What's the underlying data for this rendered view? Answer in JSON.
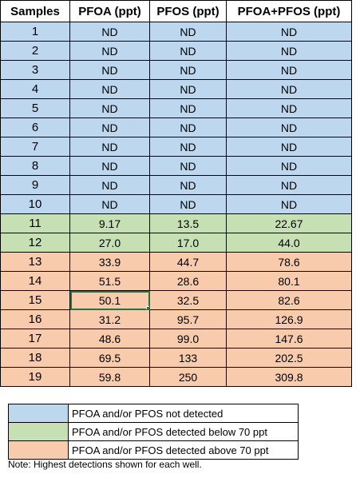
{
  "table": {
    "headers": [
      "Samples",
      "PFOA (ppt)",
      "PFOS (ppt)",
      "PFOA+PFOS (ppt)"
    ],
    "rows": [
      {
        "sample": "1",
        "pfoa": "ND",
        "pfos": "ND",
        "total": "ND",
        "category": "not_detected"
      },
      {
        "sample": "2",
        "pfoa": "ND",
        "pfos": "ND",
        "total": "ND",
        "category": "not_detected"
      },
      {
        "sample": "3",
        "pfoa": "ND",
        "pfos": "ND",
        "total": "ND",
        "category": "not_detected"
      },
      {
        "sample": "4",
        "pfoa": "ND",
        "pfos": "ND",
        "total": "ND",
        "category": "not_detected"
      },
      {
        "sample": "5",
        "pfoa": "ND",
        "pfos": "ND",
        "total": "ND",
        "category": "not_detected"
      },
      {
        "sample": "6",
        "pfoa": "ND",
        "pfos": "ND",
        "total": "ND",
        "category": "not_detected"
      },
      {
        "sample": "7",
        "pfoa": "ND",
        "pfos": "ND",
        "total": "ND",
        "category": "not_detected"
      },
      {
        "sample": "8",
        "pfoa": "ND",
        "pfos": "ND",
        "total": "ND",
        "category": "not_detected"
      },
      {
        "sample": "9",
        "pfoa": "ND",
        "pfos": "ND",
        "total": "ND",
        "category": "not_detected"
      },
      {
        "sample": "10",
        "pfoa": "ND",
        "pfos": "ND",
        "total": "ND",
        "category": "not_detected"
      },
      {
        "sample": "11",
        "pfoa": "9.17",
        "pfos": "13.5",
        "total": "22.67",
        "category": "below_70"
      },
      {
        "sample": "12",
        "pfoa": "27.0",
        "pfos": "17.0",
        "total": "44.0",
        "category": "below_70"
      },
      {
        "sample": "13",
        "pfoa": "33.9",
        "pfos": "44.7",
        "total": "78.6",
        "category": "above_70"
      },
      {
        "sample": "14",
        "pfoa": "51.5",
        "pfos": "28.6",
        "total": "80.1",
        "category": "above_70"
      },
      {
        "sample": "15",
        "pfoa": "50.1",
        "pfos": "32.5",
        "total": "82.6",
        "category": "above_70"
      },
      {
        "sample": "16",
        "pfoa": "31.2",
        "pfos": "95.7",
        "total": "126.9",
        "category": "above_70"
      },
      {
        "sample": "17",
        "pfoa": "48.6",
        "pfos": "99.0",
        "total": "147.6",
        "category": "above_70"
      },
      {
        "sample": "18",
        "pfoa": "69.5",
        "pfos": "133",
        "total": "202.5",
        "category": "above_70"
      },
      {
        "sample": "19",
        "pfoa": "59.8",
        "pfos": "250",
        "total": "309.8",
        "category": "above_70"
      }
    ],
    "selected_cell": {
      "row": 14,
      "column": "pfoa"
    }
  },
  "colors": {
    "not_detected": "#bdd7ee",
    "below_70": "#c6e0b4",
    "above_70": "#f8cbad",
    "selection": "#217346"
  },
  "legend": [
    {
      "category": "not_detected",
      "label": "PFOA and/or PFOS not detected"
    },
    {
      "category": "below_70",
      "label": "PFOA and/or PFOS detected below 70 ppt"
    },
    {
      "category": "above_70",
      "label": "PFOA and/or PFOS detected above 70 ppt"
    }
  ],
  "note": "Note: Highest detections shown for each well."
}
